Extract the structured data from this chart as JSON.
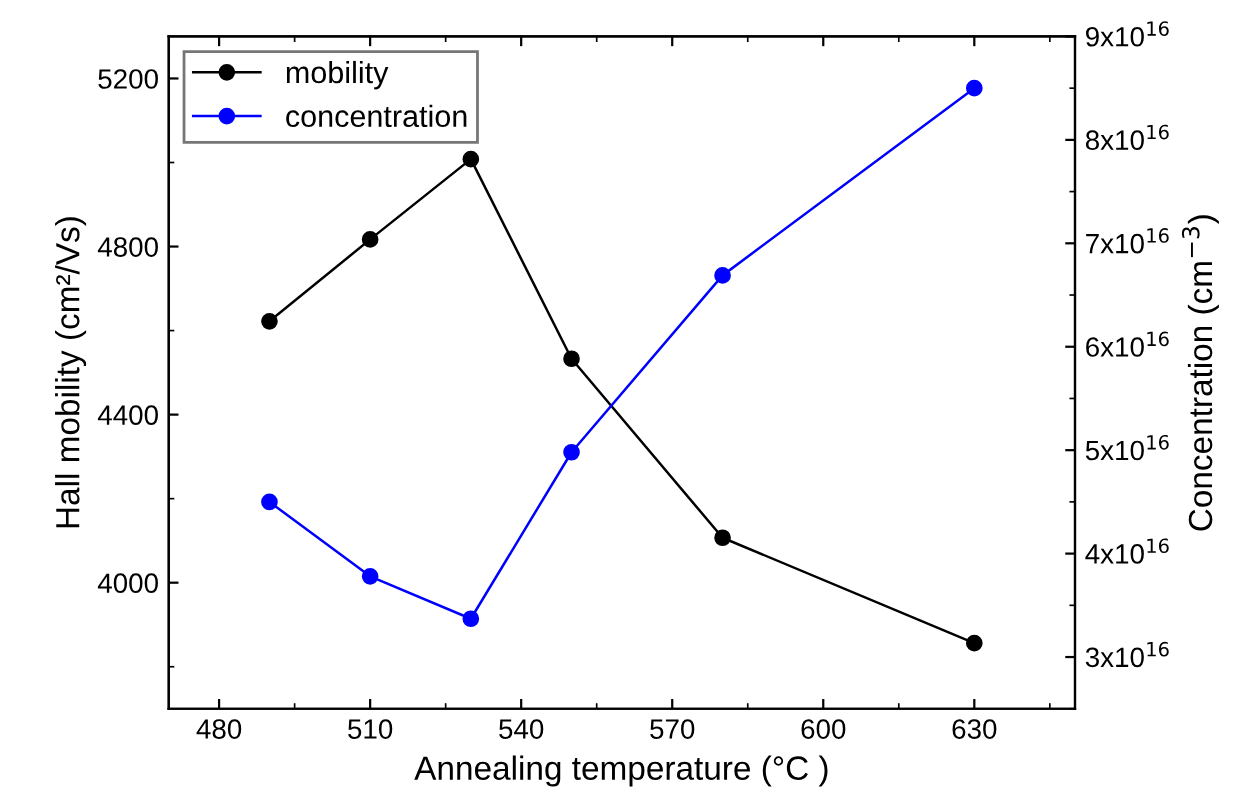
{
  "chart_data": {
    "type": "line",
    "xlabel": "Annealing temperature (°C )",
    "ylabel": "Hall mobility (cm²/Vs)",
    "y2label": "Concentration (cm$^{−3}$)",
    "x": [
      490,
      510,
      530,
      550,
      580,
      630
    ],
    "series": [
      {
        "name": "mobility",
        "color": "#000000",
        "values": [
          4622,
          4817,
          5008,
          4533,
          4107,
          3856
        ]
      },
      {
        "name": "concentration",
        "color": "#0000ff",
        "axis": "y2",
        "values": [
          4.5e+16,
          3.78e+16,
          3.37e+16,
          4.98e+16,
          6.69e+16,
          8.5e+16
        ]
      }
    ],
    "xlim": [
      470,
      650
    ],
    "xticks": [
      480,
      510,
      540,
      570,
      600,
      630
    ],
    "ylim": [
      3700,
      5300
    ],
    "yticks": [
      4000,
      4400,
      4800,
      5200
    ],
    "y2lim": [
      2.5e+16,
      9e+16
    ],
    "y2ticks": [
      {
        "value": 3e+16,
        "label": "3x10$^{16}$"
      },
      {
        "value": 4e+16,
        "label": "4x10$^{16}$"
      },
      {
        "value": 5e+16,
        "label": "5x10$^{16}$"
      },
      {
        "value": 6e+16,
        "label": "6x10$^{16}$"
      },
      {
        "value": 7e+16,
        "label": "7x10$^{16}$"
      },
      {
        "value": 8e+16,
        "label": "8x10$^{16}$"
      },
      {
        "value": 9e+16,
        "label": "9x10$^{16}$"
      }
    ],
    "marker": "circle",
    "line_style": "solid",
    "legend": "top left",
    "grid": false
  }
}
